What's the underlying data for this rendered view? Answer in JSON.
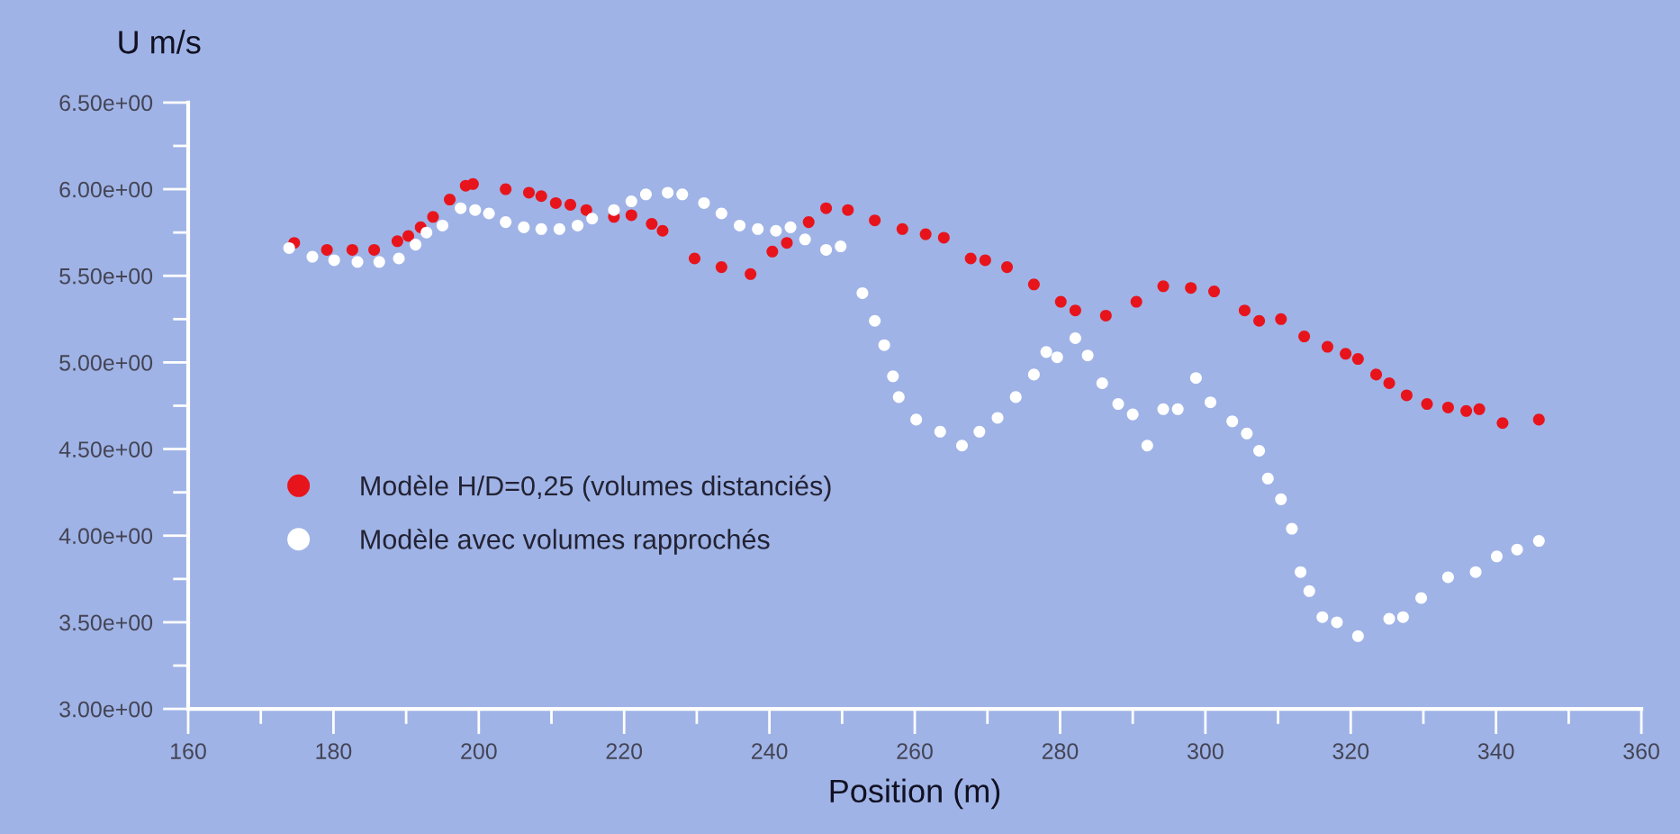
{
  "chart_data": {
    "type": "scatter",
    "xlabel": "Position (m)",
    "ylabel": "U m/s",
    "xlim": [
      160,
      360
    ],
    "xticks": [
      160,
      180,
      200,
      220,
      240,
      260,
      280,
      300,
      320,
      340,
      360
    ],
    "ylim": [
      3.0,
      6.5
    ],
    "yticks": [
      {
        "value": 3.0,
        "label": "3.00e+00"
      },
      {
        "value": 3.5,
        "label": "3.50e+00"
      },
      {
        "value": 4.0,
        "label": "4.00e+00"
      },
      {
        "value": 4.5,
        "label": "4.50e+00"
      },
      {
        "value": 5.0,
        "label": "5.00e+00"
      },
      {
        "value": 5.5,
        "label": "5.50e+00"
      },
      {
        "value": 6.0,
        "label": "6.00e+00"
      },
      {
        "value": 6.5,
        "label": "6.50e+00"
      }
    ],
    "grid": false,
    "legend": "center left",
    "marker": "circle",
    "series": [
      {
        "name": "Modèle H/D=0,25 (volumes distanciés)",
        "color": "#e8141c",
        "x": [
          174.6,
          179.1,
          182.6,
          185.6,
          188.8,
          190.3,
          192.0,
          193.7,
          196.0,
          198.2,
          199.2,
          203.7,
          206.9,
          208.6,
          210.6,
          212.6,
          214.8,
          218.6,
          221.0,
          223.8,
          225.3,
          229.7,
          233.4,
          237.4,
          240.4,
          242.4,
          245.4,
          247.8,
          250.8,
          254.5,
          258.3,
          261.5,
          264.0,
          267.7,
          269.7,
          272.7,
          276.4,
          280.1,
          282.1,
          286.3,
          290.5,
          294.2,
          298.0,
          301.2,
          305.4,
          307.4,
          310.4,
          313.6,
          316.8,
          319.3,
          321.0,
          323.5,
          325.3,
          327.7,
          330.5,
          333.4,
          335.9,
          337.7,
          340.9,
          345.9
        ],
        "values": [
          5.69,
          5.65,
          5.65,
          5.65,
          5.7,
          5.73,
          5.78,
          5.84,
          5.94,
          6.02,
          6.03,
          6.0,
          5.98,
          5.96,
          5.92,
          5.91,
          5.88,
          5.84,
          5.85,
          5.8,
          5.76,
          5.6,
          5.55,
          5.51,
          5.64,
          5.69,
          5.81,
          5.89,
          5.88,
          5.82,
          5.77,
          5.74,
          5.72,
          5.6,
          5.59,
          5.55,
          5.45,
          5.35,
          5.3,
          5.27,
          5.35,
          5.44,
          5.43,
          5.41,
          5.3,
          5.24,
          5.25,
          5.15,
          5.09,
          5.05,
          5.02,
          4.93,
          4.88,
          4.81,
          4.76,
          4.74,
          4.72,
          4.73,
          4.65,
          4.67
        ]
      },
      {
        "name": "Modèle avec volumes rapprochés",
        "color": "#ffffff",
        "x": [
          173.9,
          177.1,
          180.1,
          183.3,
          186.3,
          189.0,
          191.3,
          192.8,
          195.0,
          197.5,
          199.5,
          201.4,
          203.7,
          206.2,
          208.6,
          211.1,
          213.6,
          215.6,
          218.6,
          221.0,
          223.0,
          226.0,
          228.0,
          231.0,
          233.4,
          235.9,
          238.4,
          240.9,
          242.9,
          244.9,
          247.8,
          249.8,
          252.8,
          254.5,
          255.8,
          257.0,
          257.8,
          260.2,
          263.5,
          266.5,
          268.9,
          271.4,
          273.9,
          276.4,
          278.1,
          279.6,
          282.1,
          283.8,
          285.8,
          288.0,
          290.0,
          292.0,
          294.2,
          296.2,
          298.7,
          300.7,
          303.7,
          305.7,
          307.4,
          308.6,
          310.4,
          311.9,
          313.1,
          314.3,
          316.1,
          318.1,
          321.0,
          325.3,
          327.2,
          329.7,
          333.4,
          337.2,
          340.1,
          342.9,
          345.9
        ],
        "values": [
          5.66,
          5.61,
          5.59,
          5.58,
          5.58,
          5.6,
          5.68,
          5.75,
          5.79,
          5.89,
          5.88,
          5.86,
          5.81,
          5.78,
          5.77,
          5.77,
          5.79,
          5.83,
          5.88,
          5.93,
          5.97,
          5.98,
          5.97,
          5.92,
          5.86,
          5.79,
          5.77,
          5.76,
          5.78,
          5.71,
          5.65,
          5.67,
          5.4,
          5.24,
          5.1,
          4.92,
          4.8,
          4.67,
          4.6,
          4.52,
          4.6,
          4.68,
          4.8,
          4.93,
          5.06,
          5.03,
          5.14,
          5.04,
          4.88,
          4.76,
          4.7,
          4.52,
          4.73,
          4.73,
          4.91,
          4.77,
          4.66,
          4.59,
          4.49,
          4.33,
          4.21,
          4.04,
          3.79,
          3.68,
          3.53,
          3.5,
          3.42,
          3.52,
          3.53,
          3.64,
          3.76,
          3.79,
          3.88,
          3.92,
          3.97
        ]
      }
    ]
  }
}
